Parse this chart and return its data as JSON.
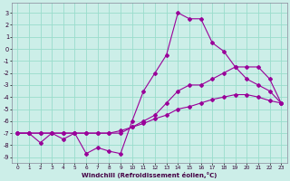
{
  "xlabel": "Windchill (Refroidissement éolien,°C)",
  "bg_color": "#cceee8",
  "grid_color": "#99ddcc",
  "line_color": "#990099",
  "xlim": [
    -0.5,
    23.5
  ],
  "ylim": [
    -9.5,
    3.8
  ],
  "xticks": [
    0,
    1,
    2,
    3,
    4,
    5,
    6,
    7,
    8,
    9,
    10,
    11,
    12,
    13,
    14,
    15,
    16,
    17,
    18,
    19,
    20,
    21,
    22,
    23
  ],
  "yticks": [
    -9,
    -8,
    -7,
    -6,
    -5,
    -4,
    -3,
    -2,
    -1,
    0,
    1,
    2,
    3
  ],
  "line1_x": [
    0,
    1,
    2,
    3,
    4,
    5,
    6,
    7,
    8,
    9,
    10,
    11,
    12,
    13,
    14,
    15,
    16,
    17,
    18,
    19,
    20,
    21,
    22,
    23
  ],
  "line1_y": [
    -7.0,
    -7.0,
    -7.8,
    -7.0,
    -7.5,
    -7.0,
    -8.7,
    -8.2,
    -8.5,
    -8.7,
    -6.0,
    -3.5,
    -2.0,
    -0.5,
    3.0,
    2.5,
    2.5,
    0.5,
    -0.2,
    -1.5,
    -2.5,
    -3.0,
    -3.5,
    -4.5
  ],
  "line2_x": [
    0,
    1,
    2,
    3,
    4,
    5,
    6,
    7,
    8,
    9,
    10,
    11,
    12,
    13,
    14,
    15,
    16,
    17,
    18,
    19,
    20,
    21,
    22,
    23
  ],
  "line2_y": [
    -7.0,
    -7.0,
    -7.0,
    -7.0,
    -7.0,
    -7.0,
    -7.0,
    -7.0,
    -7.0,
    -7.0,
    -6.5,
    -6.0,
    -5.5,
    -4.5,
    -3.5,
    -3.0,
    -3.0,
    -2.5,
    -2.0,
    -1.5,
    -1.5,
    -1.5,
    -2.5,
    -4.5
  ],
  "line3_x": [
    0,
    1,
    2,
    3,
    4,
    5,
    6,
    7,
    8,
    9,
    10,
    11,
    12,
    13,
    14,
    15,
    16,
    17,
    18,
    19,
    20,
    21,
    22,
    23
  ],
  "line3_y": [
    -7.0,
    -7.0,
    -7.0,
    -7.0,
    -7.0,
    -7.0,
    -7.0,
    -7.0,
    -7.0,
    -6.8,
    -6.5,
    -6.2,
    -5.8,
    -5.5,
    -5.0,
    -4.8,
    -4.5,
    -4.2,
    -4.0,
    -3.8,
    -3.8,
    -4.0,
    -4.3,
    -4.5
  ]
}
